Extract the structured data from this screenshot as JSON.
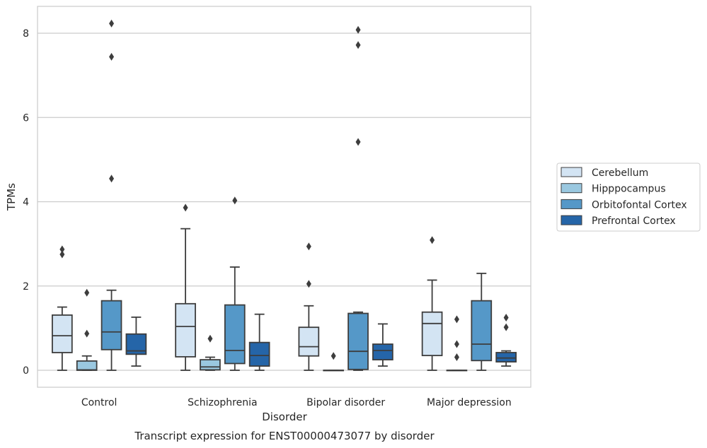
{
  "chart_data": {
    "type": "box",
    "title": "Transcript expression for ENST00000473077 by disorder",
    "xlabel": "Disorder",
    "ylabel": "TPMs",
    "ylim": [
      -0.4,
      8.65
    ],
    "yticks": [
      0,
      2,
      4,
      6,
      8
    ],
    "grid": "horizontal",
    "legend_position": "right",
    "categories": [
      "Control",
      "Schizophrenia",
      "Bipolar disorder",
      "Major depression"
    ],
    "series": [
      {
        "name": "Cerebellum",
        "color": "#d3e4f3",
        "boxes": [
          {
            "whisker_low": 0,
            "q1": 0.42,
            "median": 0.82,
            "q3": 1.31,
            "whisker_high": 1.5,
            "outliers": [
              2.75,
              2.87
            ]
          },
          {
            "whisker_low": 0,
            "q1": 0.32,
            "median": 1.04,
            "q3": 1.58,
            "whisker_high": 3.36,
            "outliers": [
              3.86
            ]
          },
          {
            "whisker_low": 0,
            "q1": 0.34,
            "median": 0.56,
            "q3": 1.02,
            "whisker_high": 1.53,
            "outliers": [
              2.05,
              2.94
            ]
          },
          {
            "whisker_low": 0,
            "q1": 0.35,
            "median": 1.11,
            "q3": 1.38,
            "whisker_high": 2.14,
            "outliers": [
              3.09
            ]
          }
        ]
      },
      {
        "name": "Hipppocampus",
        "color": "#9ac8e0",
        "boxes": [
          {
            "whisker_low": 0,
            "q1": 0,
            "median": 0.01,
            "q3": 0.22,
            "whisker_high": 0.34,
            "outliers": [
              0.87,
              1.84
            ]
          },
          {
            "whisker_low": 0,
            "q1": 0.01,
            "median": 0.08,
            "q3": 0.25,
            "whisker_high": 0.31,
            "outliers": [
              0.75
            ]
          },
          {
            "whisker_low": 0,
            "q1": 0,
            "median": 0,
            "q3": 0,
            "whisker_high": 0,
            "outliers": [
              0.34
            ]
          },
          {
            "whisker_low": 0,
            "q1": 0,
            "median": 0,
            "q3": 0,
            "whisker_high": 0,
            "outliers": [
              0.31,
              0.62,
              1.21
            ]
          }
        ]
      },
      {
        "name": "Orbitofontal Cortex",
        "color": "#5598c8",
        "boxes": [
          {
            "whisker_low": 0,
            "q1": 0.49,
            "median": 0.91,
            "q3": 1.65,
            "whisker_high": 1.9,
            "outliers": [
              4.55,
              7.44,
              8.23
            ]
          },
          {
            "whisker_low": 0,
            "q1": 0.16,
            "median": 0.47,
            "q3": 1.55,
            "whisker_high": 2.45,
            "outliers": [
              4.03
            ]
          },
          {
            "whisker_low": 0,
            "q1": 0.02,
            "median": 0.45,
            "q3": 1.35,
            "whisker_high": 1.38,
            "outliers": [
              5.42,
              7.72,
              8.08
            ]
          },
          {
            "whisker_low": 0,
            "q1": 0.23,
            "median": 0.62,
            "q3": 1.65,
            "whisker_high": 2.3,
            "outliers": []
          }
        ]
      },
      {
        "name": "Prefrontal Cortex",
        "color": "#2565a8",
        "boxes": [
          {
            "whisker_low": 0.1,
            "q1": 0.38,
            "median": 0.46,
            "q3": 0.86,
            "whisker_high": 1.26,
            "outliers": []
          },
          {
            "whisker_low": 0,
            "q1": 0.1,
            "median": 0.35,
            "q3": 0.66,
            "whisker_high": 1.33,
            "outliers": []
          },
          {
            "whisker_low": 0.1,
            "q1": 0.25,
            "median": 0.47,
            "q3": 0.62,
            "whisker_high": 1.1,
            "outliers": []
          },
          {
            "whisker_low": 0.1,
            "q1": 0.2,
            "median": 0.29,
            "q3": 0.42,
            "whisker_high": 0.46,
            "outliers": [
              1.02,
              1.25
            ]
          }
        ]
      }
    ]
  }
}
